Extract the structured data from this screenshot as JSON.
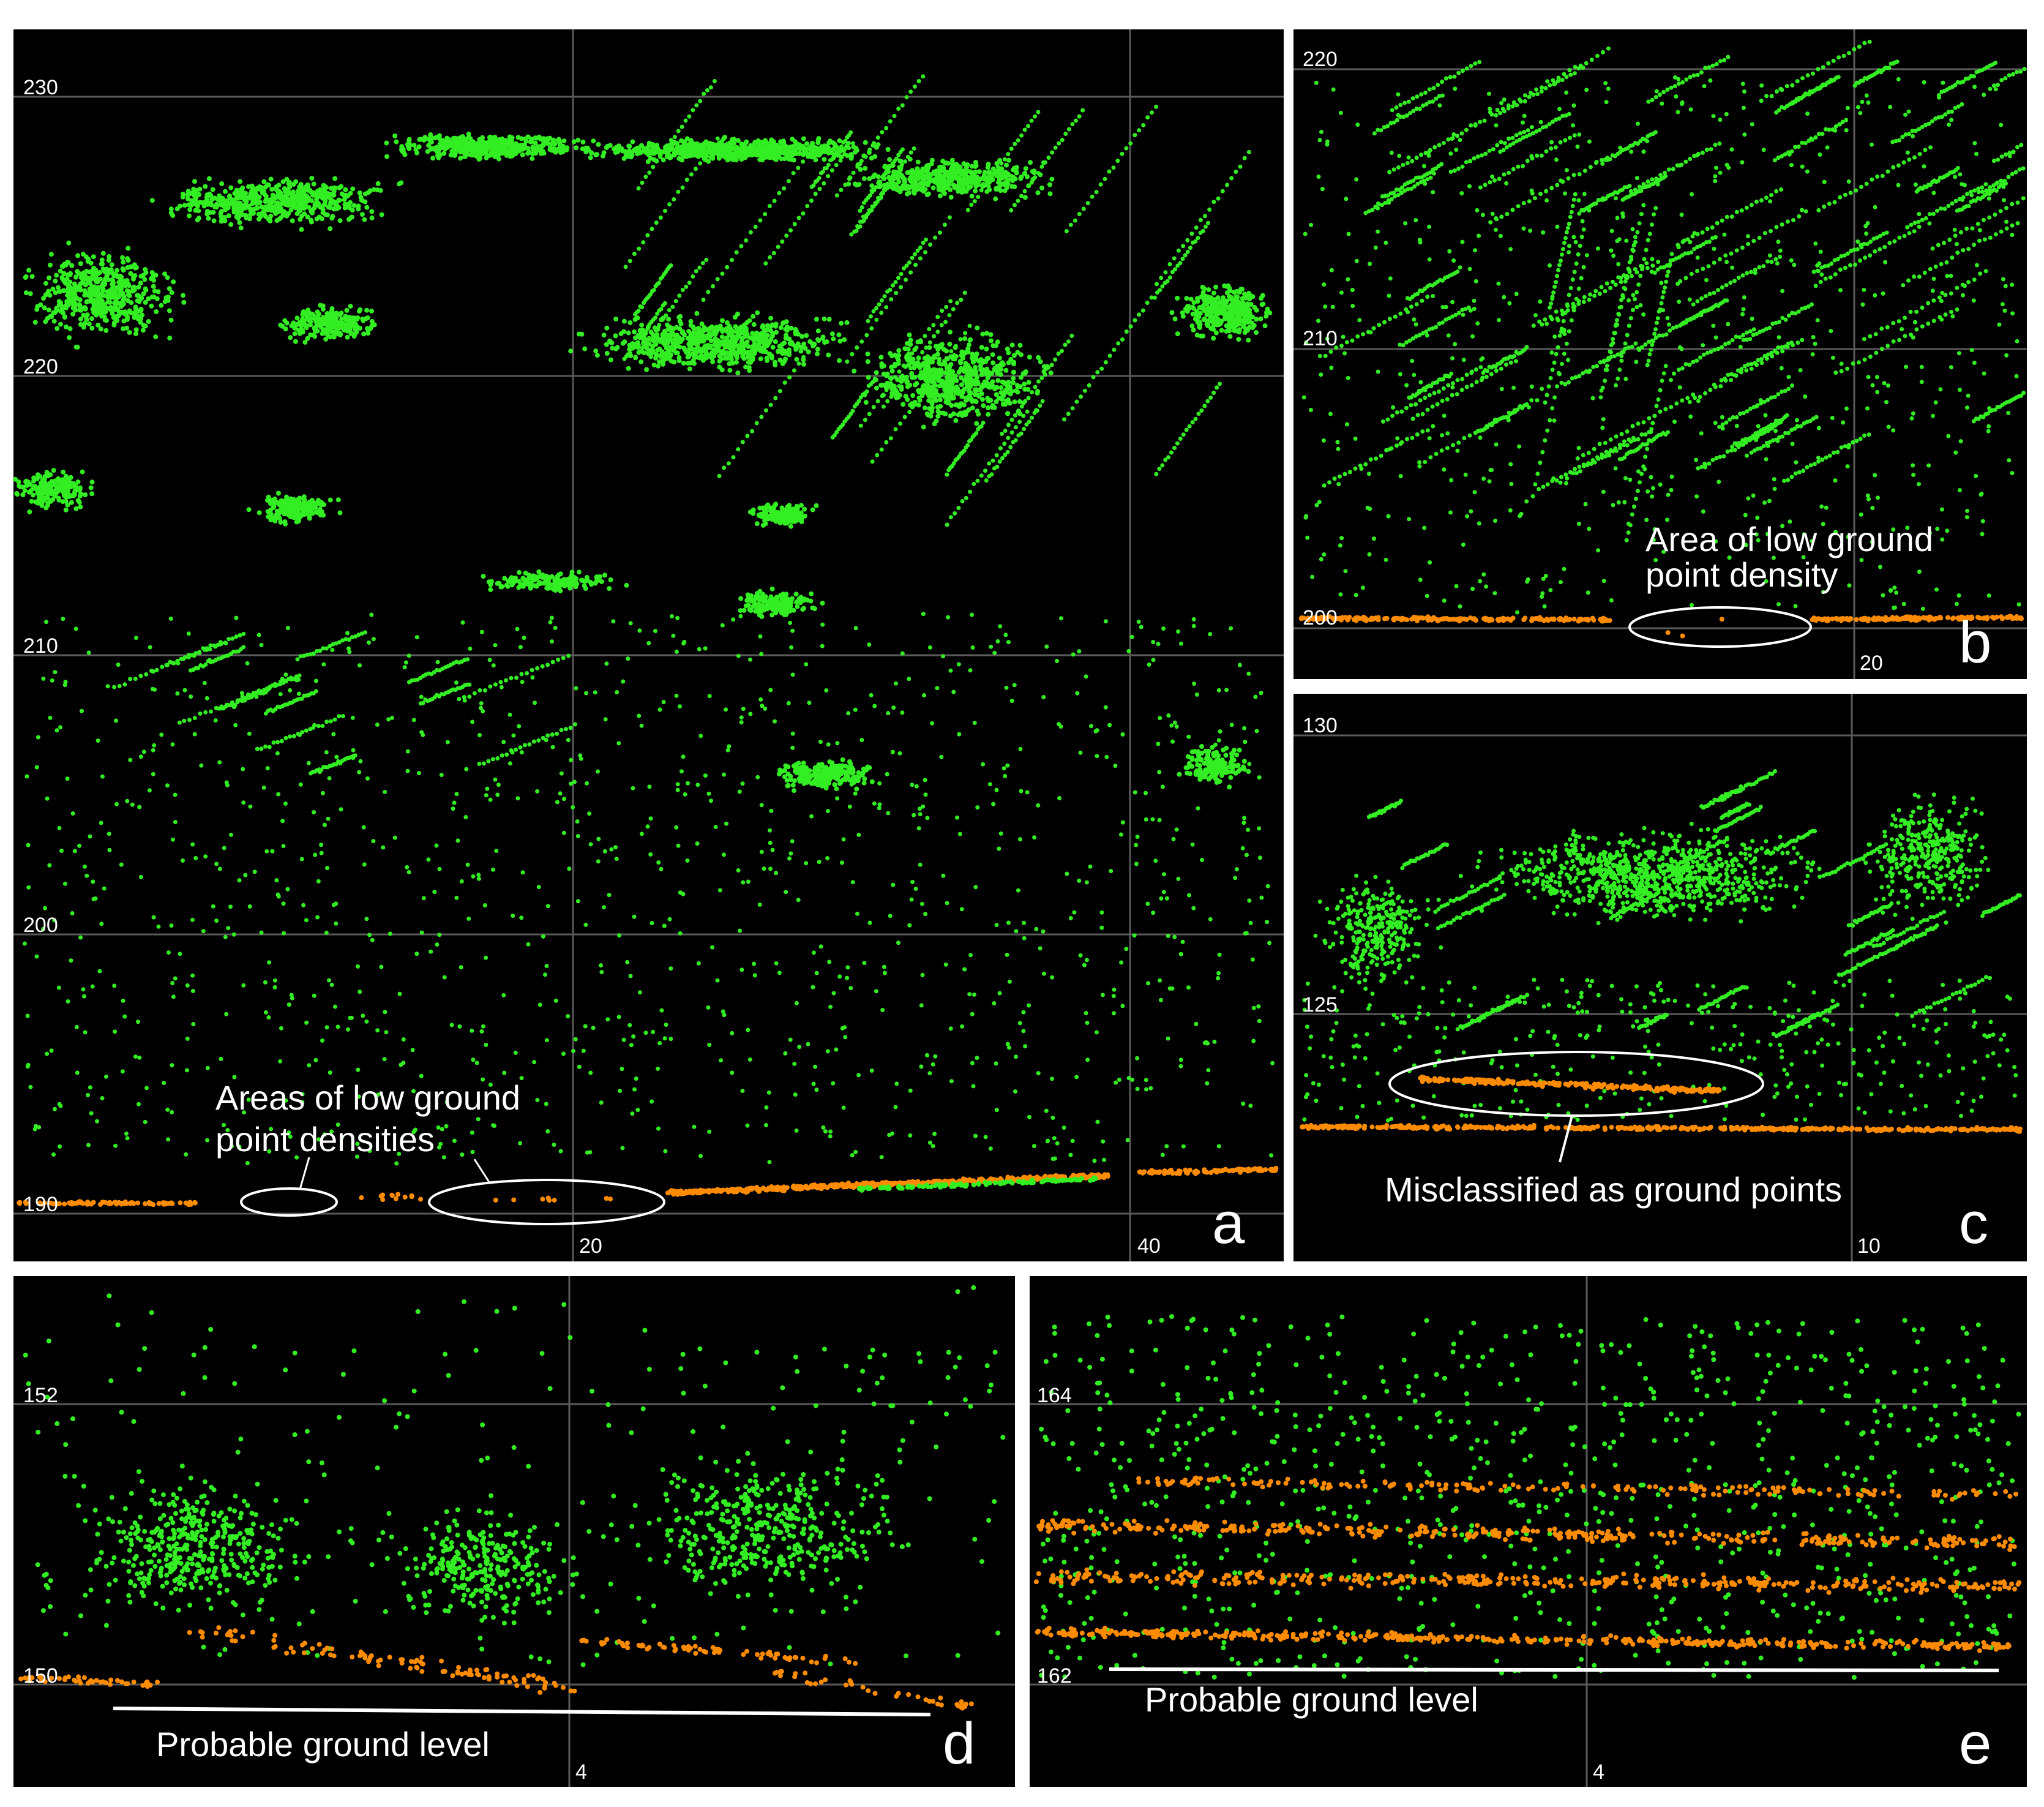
{
  "colors": {
    "background": "#000000",
    "vegetation": "#33ee22",
    "ground": "#ff8c00",
    "grid": "#5a5a5a",
    "text": "#ffffff"
  },
  "chart_data": [
    {
      "panel": "a",
      "type": "scatter",
      "y_ticks": [
        "230",
        "220",
        "210",
        "200",
        "190"
      ],
      "x_ticks": [
        "20",
        "40"
      ],
      "ylim": [
        190,
        230
      ],
      "series": [
        {
          "name": "",
          "color": "#33ee22",
          "class": "vegetation"
        },
        {
          "name": "",
          "color": "#ff8c00",
          "class": "ground"
        }
      ],
      "annotations": [
        "Areas of low ground",
        "point densities"
      ]
    },
    {
      "panel": "b",
      "type": "scatter",
      "y_ticks": [
        "220",
        "210",
        "200"
      ],
      "x_ticks": [
        "20"
      ],
      "ylim": [
        200,
        220
      ],
      "annotations": [
        "Area of low ground",
        "point density"
      ]
    },
    {
      "panel": "c",
      "type": "scatter",
      "y_ticks": [
        "130",
        "125"
      ],
      "x_ticks": [
        "10"
      ],
      "ylim": [
        122,
        130
      ],
      "annotations": [
        "Misclassified as ground points"
      ]
    },
    {
      "panel": "d",
      "type": "scatter",
      "y_ticks": [
        "152",
        "150"
      ],
      "x_ticks": [
        "4"
      ],
      "ylim": [
        150,
        153
      ],
      "annotations": [
        "Probable ground level"
      ]
    },
    {
      "panel": "e",
      "type": "scatter",
      "y_ticks": [
        "164",
        "162"
      ],
      "x_ticks": [
        "4"
      ],
      "ylim": [
        162,
        165
      ],
      "annotations": [
        "Probable ground level"
      ]
    }
  ]
}
